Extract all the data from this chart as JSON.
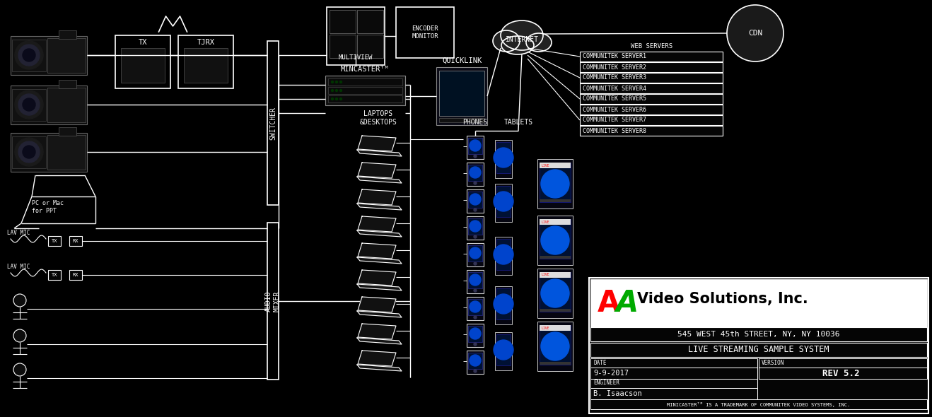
{
  "bg_color": "#000000",
  "fg_color": "#ffffff",
  "server_names": [
    "COMMUNITEK SERVER1",
    "COMMUNITEK SERVER2",
    "COMMUNITEK SERVER3",
    "COMMUNITEK SERVER4",
    "COMMUNITEK SERVER5",
    "COMMUNITEK SERVER6",
    "COMMUNITEK SERVER7",
    "COMMUNITEK SERVER8"
  ],
  "title_block": {
    "address": "545 WEST 45th STREET, NY, NY 10036",
    "system": "LIVE STREAMING SAMPLE SYSTEM",
    "date_label": "DATE",
    "date_val": "9-9-2017",
    "version_label": "VERSION",
    "version_val": "REV 5.2",
    "engineer_label": "ENGINEER",
    "engineer_val": "B. Isaacson",
    "trademark": "MINICASTERᵀᴹ IS A TRADEMARK OF COMMUNITEK VIDEO SYSTEMS, INC."
  }
}
